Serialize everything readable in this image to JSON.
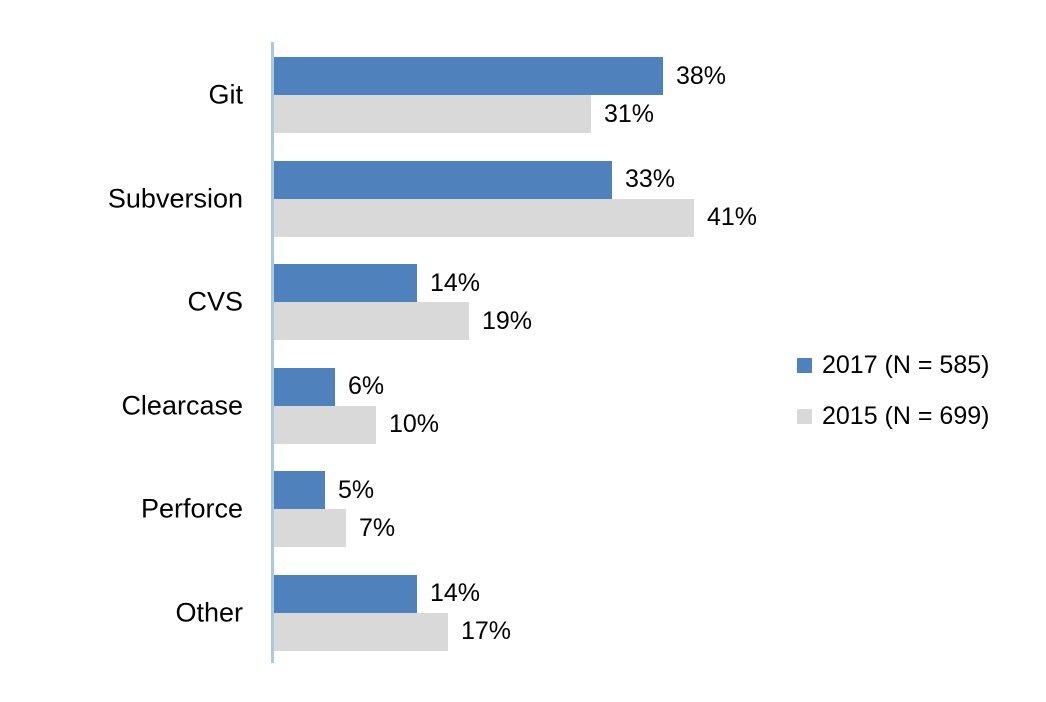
{
  "chart_data": {
    "type": "bar",
    "orientation": "horizontal",
    "title": "",
    "categories": [
      "Git",
      "Subversion",
      "CVS",
      "Clearcase",
      "Perforce",
      "Other"
    ],
    "series": [
      {
        "name": "2017 (N = 585)",
        "color": "#4F81BD",
        "values": [
          38,
          33,
          14,
          6,
          5,
          14
        ],
        "labels": [
          "38%",
          "33%",
          "14%",
          "6%",
          "5%",
          "14%"
        ]
      },
      {
        "name": "2015 (N = 699)",
        "color": "#D9D9D9",
        "values": [
          31,
          41,
          19,
          10,
          7,
          17
        ],
        "labels": [
          "31%",
          "41%",
          "19%",
          "10%",
          "7%",
          "17%"
        ]
      }
    ],
    "value_suffix": "%",
    "xlim": [
      0,
      48
    ],
    "grid": false,
    "legend_position": "right",
    "axis_color": "#A9CBE2",
    "text_color": "#000000",
    "background_color": "#FFFFFF"
  }
}
